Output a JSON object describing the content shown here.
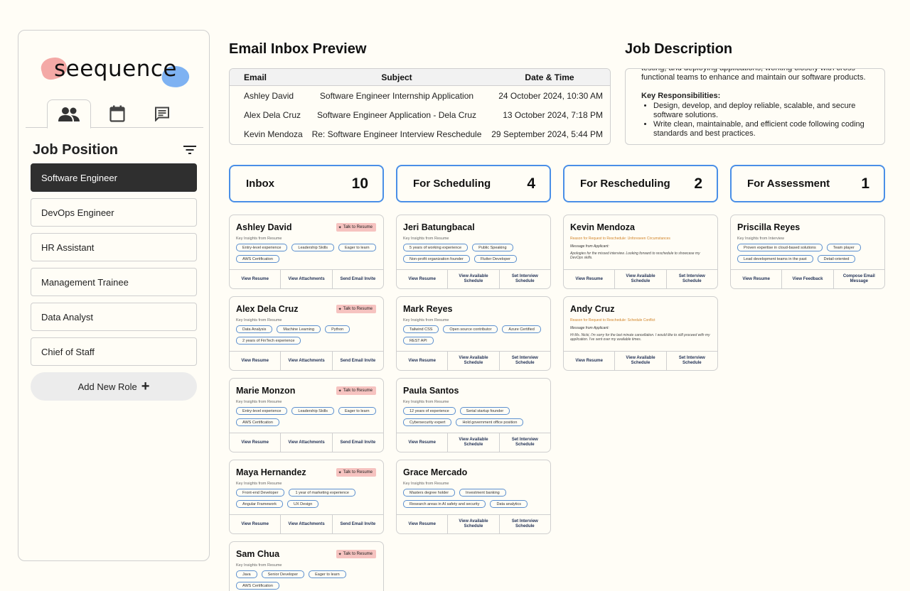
{
  "app": {
    "logo": "seequence"
  },
  "sidebar": {
    "title": "Job Position",
    "roles": [
      "Software Engineer",
      "DevOps Engineer",
      "HR Assistant",
      "Management Trainee",
      "Data Analyst",
      "Chief of Staff"
    ],
    "active_role_index": 0,
    "add_role_label": "Add New Role",
    "tabs": [
      "people-icon",
      "calendar-icon",
      "message-icon"
    ]
  },
  "email": {
    "title": "Email Inbox Preview",
    "headers": [
      "Email",
      "Subject",
      "Date & Time"
    ],
    "rows": [
      [
        "Ashley David",
        "Software Engineer Internship Application",
        "24 October 2024, 10:30 AM"
      ],
      [
        "Alex Dela Cruz",
        "Software Engineer Application - Dela Cruz",
        "13 October 2024, 7:18 PM"
      ],
      [
        "Kevin Mendoza",
        "Re: Software Engineer Interview Reschedule",
        "29 September 2024, 5:44 PM"
      ]
    ]
  },
  "job": {
    "title": "Job Description",
    "intro": "testing, and deploying applications, working closely with cross-functional teams to enhance and maintain our software products.",
    "resp_title": "Key Responsibilities:",
    "bullets": [
      "Design, develop, and deploy reliable, scalable, and secure software solutions.",
      "Write clean, maintainable, and efficient code following coding standards and best practices."
    ]
  },
  "columns": [
    {
      "label": "Inbox",
      "count": "10"
    },
    {
      "label": "For Scheduling",
      "count": "4"
    },
    {
      "label": "For Rescheduling",
      "count": "2"
    },
    {
      "label": "For Assessment",
      "count": "1"
    }
  ],
  "labels": {
    "talk": "Talk to Resume",
    "insight_resume": "Key Insights from Resume",
    "insight_interview": "Key Insights from Interview",
    "msg_from": "Message from Applicant:",
    "view_resume": "View Resume",
    "view_attachments": "View Attachments",
    "send_invite": "Send Email Invite",
    "view_schedule": "View Available Schedule",
    "set_schedule": "Set Interview Schedule",
    "view_feedback": "View Feedback",
    "compose": "Compose Email Message"
  },
  "inbox": [
    {
      "name": "Ashley David",
      "tags": [
        "Entry-level experience",
        "Leadership Skills",
        "Eager to learn",
        "AWS Certification"
      ]
    },
    {
      "name": "Alex Dela Cruz",
      "tags": [
        "Data Analysis",
        "Machine Learning",
        "Python",
        "2 years of FinTech experience"
      ]
    },
    {
      "name": "Marie Monzon",
      "tags": [
        "Entry-level experience",
        "Leadership Skills",
        "Eager to learn",
        "AWS Certification"
      ]
    },
    {
      "name": "Maya Hernandez",
      "tags": [
        "Front-end Developer",
        "1 year of marketing experience",
        "Angular Framework",
        "UX Design"
      ]
    },
    {
      "name": "Sam Chua",
      "tags": [
        "Java",
        "Senior Developer",
        "Eager to learn",
        "AWS Certification"
      ]
    }
  ],
  "scheduling": [
    {
      "name": "Jeri Batungbacal",
      "tags": [
        "5 years of working experience",
        "Public Speaking",
        "Non-profit organization founder",
        "Flutter Developer"
      ]
    },
    {
      "name": "Mark Reyes",
      "tags": [
        "Tailwind CSS",
        "Open source contributor",
        "Azure Certified",
        "REST API"
      ]
    },
    {
      "name": "Paula Santos",
      "tags": [
        "12 years of experience",
        "Serial startup founder",
        "Cybersecurity expert",
        "Hold government office position"
      ]
    },
    {
      "name": "Grace Mercado",
      "tags": [
        "Masters degree holder",
        "Investment banking",
        "Research areas in AI safety and security",
        "Data analytics"
      ]
    }
  ],
  "rescheduling": [
    {
      "name": "Kevin Mendoza",
      "reason": "Reason for Request to Reschedule: Unforeseen Circumstances",
      "message": "Apologies for the missed interview. Looking forward to reschedule to showcase my DevOps skills."
    },
    {
      "name": "Andy Cruz",
      "reason": "Reason for Request to Reschedule: Schedule Conflict",
      "message": "Hi Ms. Nicki, I'm sorry for the last minute cancellation. I would like to still proceed with my application. I've sent over my available times."
    }
  ],
  "assessment": [
    {
      "name": "Priscilla Reyes",
      "tags": [
        "Proven expertise in cloud-based solutions",
        "Team player",
        "Lead development teams in the past",
        "Detail-oriented"
      ]
    }
  ]
}
